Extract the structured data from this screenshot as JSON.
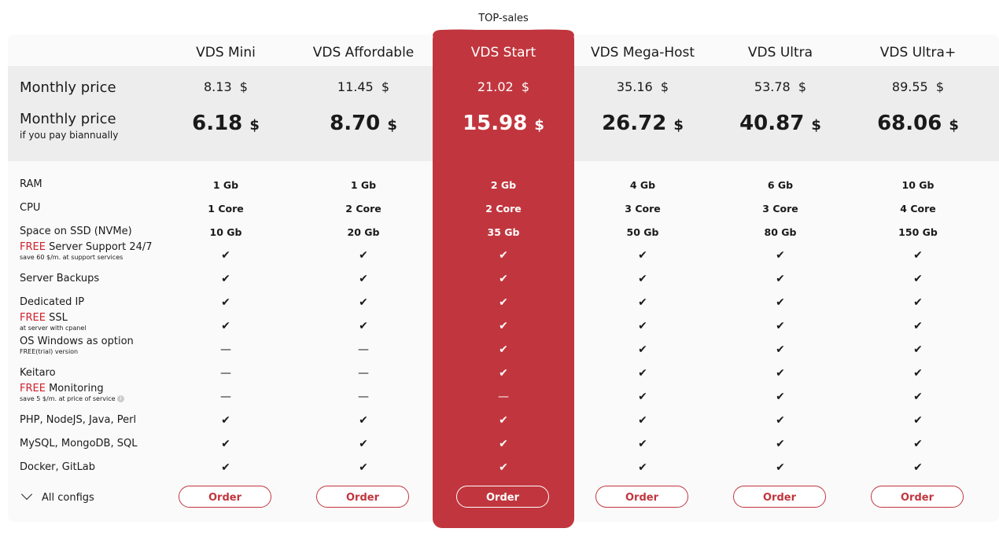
{
  "top_label": "TOP-sales",
  "labels": {
    "monthly": "Monthly price",
    "monthly_bi": "Monthly price",
    "monthly_bi_sub": "if you pay biannually",
    "all_configs": "All configs",
    "currency": "$",
    "order": "Order"
  },
  "plans": [
    {
      "name": "VDS Mini",
      "price": "8.13",
      "price_bi": "6.18"
    },
    {
      "name": "VDS Affordable",
      "price": "11.45",
      "price_bi": "8.70"
    },
    {
      "name": "VDS Start",
      "price": "21.02",
      "price_bi": "15.98"
    },
    {
      "name": "VDS Mega-Host",
      "price": "35.16",
      "price_bi": "26.72"
    },
    {
      "name": "VDS Ultra",
      "price": "53.78",
      "price_bi": "40.87"
    },
    {
      "name": "VDS Ultra+",
      "price": "89.55",
      "price_bi": "68.06"
    }
  ],
  "features": [
    {
      "label": "RAM",
      "values": [
        "1 Gb",
        "1 Gb",
        "2 Gb",
        "4 Gb",
        "6 Gb",
        "10 Gb"
      ]
    },
    {
      "label": "CPU",
      "values": [
        "1 Core",
        "2 Core",
        "2 Core",
        "3 Core",
        "3 Core",
        "4 Core"
      ]
    },
    {
      "label": "Space on SSD (NVMe)",
      "values": [
        "10 Gb",
        "20 Gb",
        "35 Gb",
        "50 Gb",
        "80 Gb",
        "150 Gb"
      ]
    },
    {
      "free": "FREE",
      "label": " Server Support 24/7",
      "sub": "save 60 $/m. at support services",
      "values": [
        "check",
        "check",
        "check",
        "check",
        "check",
        "check"
      ]
    },
    {
      "label": "Server Backups",
      "values": [
        "check",
        "check",
        "check",
        "check",
        "check",
        "check"
      ]
    },
    {
      "label": "Dedicated IP",
      "values": [
        "check",
        "check",
        "check",
        "check",
        "check",
        "check"
      ]
    },
    {
      "free": "FREE",
      "label": " SSL",
      "sub": "at server with cpanel",
      "values": [
        "check",
        "check",
        "check",
        "check",
        "check",
        "check"
      ]
    },
    {
      "label": "OS Windows as option",
      "sub": "FREE(trial) version",
      "values": [
        "dash",
        "dash",
        "check",
        "check",
        "check",
        "check"
      ]
    },
    {
      "label": "Keitaro",
      "values": [
        "dash",
        "dash",
        "check",
        "check",
        "check",
        "check"
      ]
    },
    {
      "free": "FREE",
      "label": " Monitoring",
      "sub": "save 5 $/m. at price of service",
      "info": true,
      "values": [
        "dash",
        "dash",
        "dash",
        "check",
        "check",
        "check"
      ]
    },
    {
      "label": "PHP, NodeJS, Java, Perl",
      "values": [
        "check",
        "check",
        "check",
        "check",
        "check",
        "check"
      ]
    },
    {
      "label": "MySQL, MongoDB, SQL",
      "values": [
        "check",
        "check",
        "check",
        "check",
        "check",
        "check"
      ]
    },
    {
      "label": "Docker, GitLab",
      "values": [
        "check",
        "check",
        "check",
        "check",
        "check",
        "check"
      ]
    }
  ],
  "colors": {
    "accent": "#c1363e",
    "free_text": "#d0202c"
  }
}
